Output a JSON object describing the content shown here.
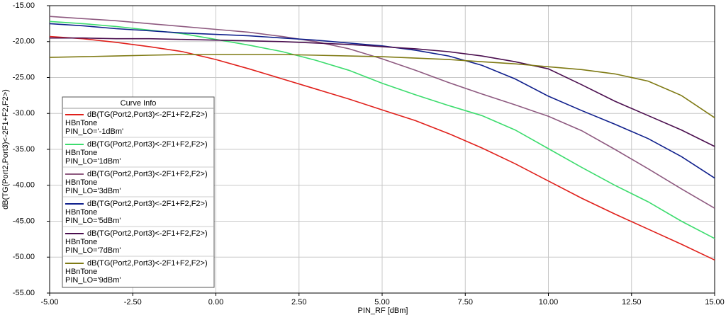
{
  "chart_data": {
    "type": "line",
    "x_label": "PIN_RF [dBm]",
    "y_label": "dB(TG(Port2,Port3)<-2F1+F2,F2>)",
    "legend_title": "Curve Info",
    "legend": "lower-left",
    "grid": true,
    "x": [
      -5,
      -4,
      -3,
      -2,
      -1,
      0,
      1,
      2,
      3,
      4,
      5,
      6,
      7,
      8,
      9,
      10,
      11,
      12,
      13,
      14,
      15
    ],
    "xlim": [
      -5,
      15
    ],
    "ylim": [
      -55,
      -15
    ],
    "xticks": [
      {
        "value": -5,
        "label": "-5.00"
      },
      {
        "value": -2.5,
        "label": "-2.50"
      },
      {
        "value": 0,
        "label": "0.00"
      },
      {
        "value": 2.5,
        "label": "2.50"
      },
      {
        "value": 5,
        "label": "5.00"
      },
      {
        "value": 7.5,
        "label": "7.50"
      },
      {
        "value": 10,
        "label": "10.00"
      },
      {
        "value": 12.5,
        "label": "12.50"
      },
      {
        "value": 15,
        "label": "15.00"
      }
    ],
    "yticks": [
      {
        "value": -55,
        "label": "-55.00"
      },
      {
        "value": -50,
        "label": "-50.00"
      },
      {
        "value": -45,
        "label": "-45.00"
      },
      {
        "value": -40,
        "label": "-40.00"
      },
      {
        "value": -35,
        "label": "-35.00"
      },
      {
        "value": -30,
        "label": "-30.00"
      },
      {
        "value": -25,
        "label": "-25.00"
      },
      {
        "value": -20,
        "label": "-20.00"
      },
      {
        "value": -15,
        "label": "-15.00"
      }
    ],
    "series": [
      {
        "name": "dB(TG(Port2,Port3)<-2F1+F2,F2>)",
        "sweep": "HBnTone",
        "setting": "PIN_LO='-1dBm'",
        "color": "#e0201b",
        "values": [
          -19.3,
          -19.6,
          -20.1,
          -20.7,
          -21.4,
          -22.5,
          -23.8,
          -25.2,
          -26.6,
          -28.0,
          -29.5,
          -31.0,
          -32.8,
          -34.8,
          -37.0,
          -39.4,
          -41.8,
          -44.0,
          -46.1,
          -48.2,
          -50.4
        ]
      },
      {
        "name": "dB(TG(Port2,Port3)<-2F1+F2,F2>)",
        "sweep": "HBnTone",
        "setting": "PIN_LO='1dBm'",
        "color": "#3ddc6e",
        "values": [
          -17.2,
          -17.5,
          -17.9,
          -18.4,
          -18.9,
          -19.7,
          -20.5,
          -21.4,
          -22.6,
          -24.0,
          -25.8,
          -27.4,
          -28.9,
          -30.3,
          -32.3,
          -34.9,
          -37.5,
          -40.0,
          -42.3,
          -45.0,
          -47.4
        ]
      },
      {
        "name": "dB(TG(Port2,Port3)<-2F1+F2,F2>)",
        "sweep": "HBnTone",
        "setting": "PIN_LO='3dBm'",
        "color": "#8e5a80",
        "values": [
          -16.5,
          -16.8,
          -17.1,
          -17.5,
          -17.9,
          -18.3,
          -18.7,
          -19.3,
          -20.0,
          -21.0,
          -22.4,
          -24.0,
          -25.7,
          -27.3,
          -28.8,
          -30.4,
          -32.4,
          -35.0,
          -37.7,
          -40.5,
          -43.2
        ]
      },
      {
        "name": "dB(TG(Port2,Port3)<-2F1+F2,F2>)",
        "sweep": "HBnTone",
        "setting": "PIN_LO='5dBm'",
        "color": "#0f1f8c",
        "values": [
          -17.5,
          -17.8,
          -18.2,
          -18.5,
          -18.8,
          -19.0,
          -19.2,
          -19.5,
          -19.8,
          -20.2,
          -20.6,
          -21.2,
          -22.0,
          -23.3,
          -25.2,
          -27.6,
          -29.6,
          -31.5,
          -33.5,
          -36.0,
          -39.0
        ]
      },
      {
        "name": "dB(TG(Port2,Port3)<-2F1+F2,F2>)",
        "sweep": "HBnTone",
        "setting": "PIN_LO='7dBm'",
        "color": "#4b0f4f",
        "values": [
          -19.5,
          -19.5,
          -19.6,
          -19.6,
          -19.7,
          -19.8,
          -19.9,
          -20.0,
          -20.2,
          -20.4,
          -20.7,
          -21.0,
          -21.4,
          -22.0,
          -22.8,
          -23.8,
          -26.0,
          -28.3,
          -30.3,
          -32.3,
          -34.6
        ]
      },
      {
        "name": "dB(TG(Port2,Port3)<-2F1+F2,F2>)",
        "sweep": "HBnTone",
        "setting": "PIN_LO='9dBm'",
        "color": "#7f7a14",
        "values": [
          -22.2,
          -22.1,
          -22.0,
          -21.9,
          -21.8,
          -21.8,
          -21.8,
          -21.8,
          -21.9,
          -22.0,
          -22.1,
          -22.3,
          -22.5,
          -22.8,
          -23.1,
          -23.5,
          -23.9,
          -24.5,
          -25.5,
          -27.5,
          -30.6
        ]
      }
    ]
  }
}
